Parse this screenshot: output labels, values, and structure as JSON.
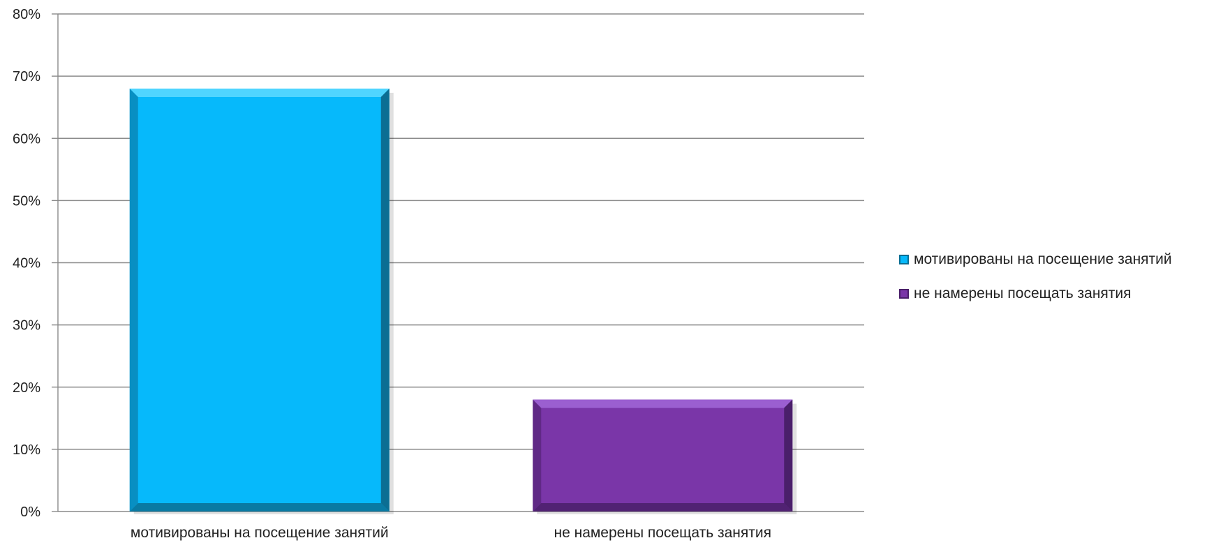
{
  "chart_data": {
    "type": "bar",
    "categories": [
      "мотивированы на посещение занятий",
      "не намерены посещать занятия"
    ],
    "values": [
      0.68,
      0.18
    ],
    "ylim": [
      0,
      0.8
    ],
    "yticks": [
      "0%",
      "10%",
      "20%",
      "30%",
      "40%",
      "50%",
      "60%",
      "70%",
      "80%"
    ],
    "grid": true,
    "legend_position": "right",
    "legend": [
      {
        "label": "мотивированы на посещение занятий",
        "color": "#06b9fb"
      },
      {
        "label": "не намерены посещать занятия",
        "color": "#7a36a8"
      }
    ],
    "colors": [
      "#06b9fb",
      "#7a36a8"
    ],
    "edge_colors": [
      "#0b6e93",
      "#4a1f6a"
    ],
    "highlight_colors": [
      "#4fd5ff",
      "#9b5fd0"
    ]
  }
}
